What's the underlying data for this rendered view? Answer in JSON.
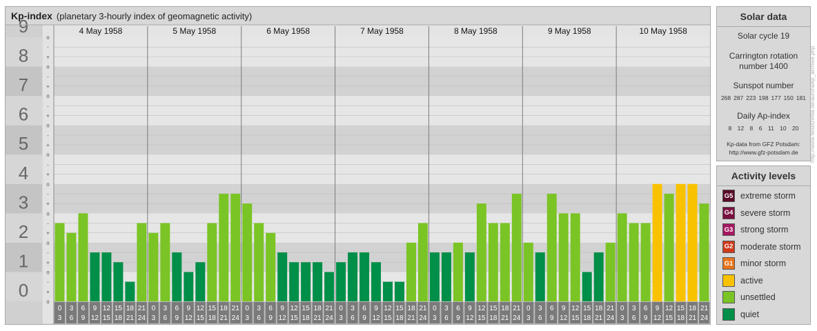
{
  "header": {
    "title": "Kp-index",
    "subtitle": "(planetary 3-hourly index of geomagnetic activity)"
  },
  "chart_data": {
    "type": "bar",
    "title": "Kp-index",
    "subtitle": "(planetary 3-hourly index of geomagnetic activity)",
    "ylim": [
      0,
      9
    ],
    "y_major_ticks": [
      "0",
      "1",
      "2",
      "3",
      "4",
      "5",
      "6",
      "7",
      "8",
      "9"
    ],
    "y_minor_tick_labels": [
      "o",
      "-",
      "+"
    ],
    "days": [
      "4 May 1958",
      "5 May 1958",
      "6 May 1958",
      "7 May 1958",
      "8 May 1958",
      "9 May 1958",
      "10 May 1958"
    ],
    "interval_labels": [
      [
        "0",
        "3"
      ],
      [
        "3",
        "6"
      ],
      [
        "6",
        "9"
      ],
      [
        "9",
        "12"
      ],
      [
        "12",
        "15"
      ],
      [
        "15",
        "18"
      ],
      [
        "18",
        "21"
      ],
      [
        "21",
        "24"
      ]
    ],
    "values": [
      [
        2.667,
        2.333,
        3.0,
        1.667,
        1.667,
        1.333,
        0.667,
        2.667
      ],
      [
        2.333,
        2.667,
        1.667,
        1.0,
        1.333,
        2.667,
        3.667,
        3.667
      ],
      [
        3.333,
        2.667,
        2.333,
        1.667,
        1.333,
        1.333,
        1.333,
        1.0
      ],
      [
        1.333,
        1.667,
        1.667,
        1.333,
        0.667,
        0.667,
        2.0,
        2.667
      ],
      [
        1.667,
        1.667,
        2.0,
        1.667,
        3.333,
        2.667,
        2.667,
        3.667
      ],
      [
        2.0,
        1.667,
        3.667,
        3.0,
        3.0,
        1.0,
        1.667,
        2.0
      ],
      [
        3.0,
        2.667,
        2.667,
        4.0,
        3.667,
        4.0,
        4.0,
        3.333
      ]
    ],
    "grid": true
  },
  "solar": {
    "title": "Solar data",
    "cycle": "Solar cycle 19",
    "carrington": "Carrington rotation number 1400",
    "sunspot_label": "Sunspot number",
    "sunspot_numbers": [
      "268",
      "287",
      "223",
      "198",
      "177",
      "150",
      "181"
    ],
    "ap_label": "Daily Ap-index",
    "ap_values": [
      "8",
      "12",
      "8",
      "6",
      "11",
      "10",
      "20"
    ],
    "credit_line1": "Kp-data from GFZ Potsdam:",
    "credit_line2": "http://www.gfz-potsdam.de"
  },
  "activity_levels": {
    "title": "Activity levels",
    "items": [
      {
        "code": "G5",
        "label": "extreme storm",
        "color": "#5a0a2a"
      },
      {
        "code": "G4",
        "label": "severe storm",
        "color": "#7a1040"
      },
      {
        "code": "G3",
        "label": "strong storm",
        "color": "#a51860"
      },
      {
        "code": "G2",
        "label": "moderate storm",
        "color": "#d03a1a"
      },
      {
        "code": "G1",
        "label": "minor storm",
        "color": "#e8741a"
      },
      {
        "code": "",
        "label": "active",
        "color": "#f9c200"
      },
      {
        "code": "",
        "label": "unsettled",
        "color": "#7bc425"
      },
      {
        "code": "",
        "label": "quiet",
        "color": "#008f48"
      }
    ]
  },
  "watermark": "http://www.fieselzeitla.de/aurora/kp_archive.php"
}
